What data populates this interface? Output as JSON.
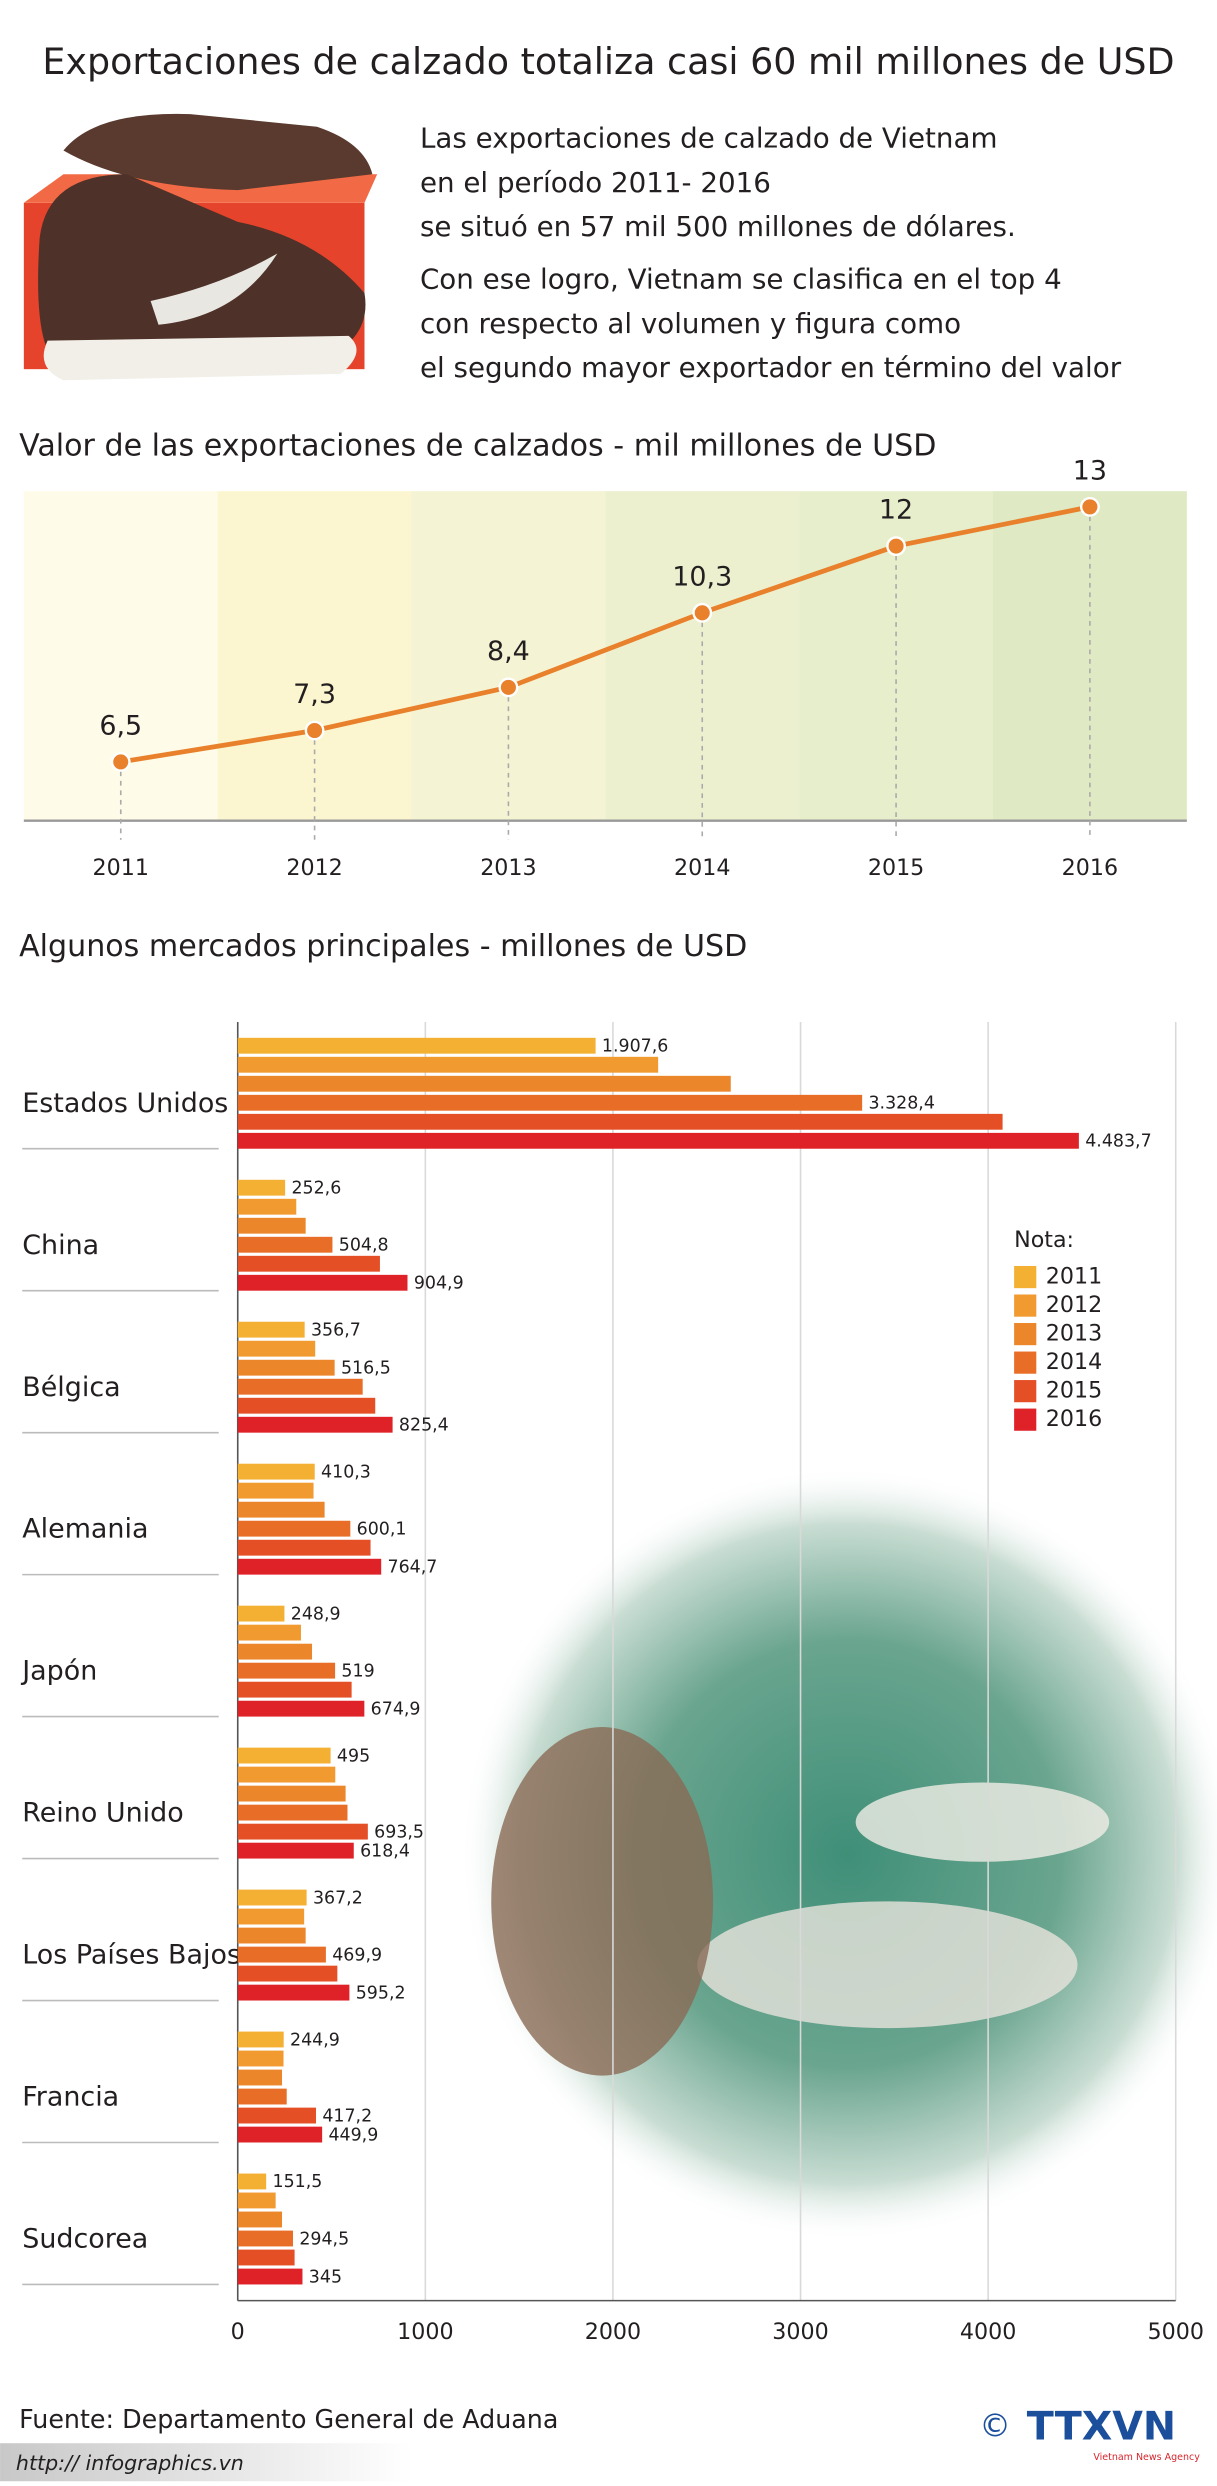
{
  "title": "Exportaciones de calzado totaliza casi 60 mil millones de USD",
  "intro": [
    "Las exportaciones de calzado de Vietnam",
    "en el período 2011- 2016",
    "se situó en 57 mil 500 millones de dólares.",
    "Con ese logro, Vietnam se clasifica en el top 4",
    "con respecto al volumen y figura como",
    "el segundo mayor exportador en término del valor"
  ],
  "chart_data": [
    {
      "type": "line",
      "title": "Valor de las exportaciones de calzados - mil millones de USD",
      "categories": [
        "2011",
        "2012",
        "2013",
        "2014",
        "2015",
        "2016"
      ],
      "values": [
        6.5,
        7.3,
        8.4,
        10.3,
        12,
        13
      ],
      "value_labels": [
        "6,5",
        "7,3",
        "8,4",
        "10,3",
        "12",
        "13"
      ],
      "color": "#e8802c",
      "ylim": [
        5,
        13.4
      ]
    },
    {
      "type": "hbar",
      "title": "Algunos mercados principales - millones de USD",
      "categories": [
        "Estados Unidos",
        "China",
        "Bélgica",
        "Alemania",
        "Japón",
        "Reino Unido",
        "Los Países Bajos",
        "Francia",
        "Sudcorea"
      ],
      "legend_title": "Nota:",
      "series": [
        {
          "name": "2011",
          "color": "#f3b033",
          "values": [
            1907.6,
            252.6,
            356.7,
            410.3,
            248.9,
            495,
            367.2,
            244.9,
            151.5
          ],
          "value_labels": [
            "1.907,6",
            "252,6",
            "356,7",
            "410,3",
            "248,9",
            "495",
            "367,2",
            "244,9",
            "151,5"
          ]
        },
        {
          "name": "2012",
          "color": "#f09a30",
          "values": [
            2241,
            312,
            413,
            404,
            337,
            520,
            354,
            244,
            202
          ],
          "value_labels": [
            null,
            null,
            null,
            null,
            null,
            null,
            null,
            null,
            null
          ]
        },
        {
          "name": "2013",
          "color": "#ec862b",
          "values": [
            2628,
            362,
            516.5,
            463,
            396,
            575,
            362,
            236,
            236
          ],
          "value_labels": [
            null,
            null,
            "516,5",
            null,
            null,
            null,
            null,
            null,
            null
          ]
        },
        {
          "name": "2014",
          "color": "#e86d27",
          "values": [
            3328.4,
            504.8,
            666,
            600.1,
            519,
            585,
            469.9,
            261,
            294.5
          ],
          "value_labels": [
            "3.328,4",
            "504,8",
            null,
            "600,1",
            "519",
            null,
            "469,9",
            null,
            "294,5"
          ]
        },
        {
          "name": "2015",
          "color": "#e44f26",
          "values": [
            4077,
            758,
            733,
            708,
            607,
            693.5,
            531,
            417.2,
            303
          ],
          "value_labels": [
            null,
            null,
            null,
            null,
            null,
            "693,5",
            null,
            "417,2",
            null
          ]
        },
        {
          "name": "2016",
          "color": "#df2228",
          "values": [
            4483.7,
            904.9,
            825.4,
            764.7,
            674.9,
            618.4,
            595.2,
            449.9,
            345
          ],
          "value_labels": [
            "4.483,7",
            "904,9",
            "825,4",
            "764,7",
            "674,9",
            "618,4",
            "595,2",
            "449,9",
            "345"
          ]
        }
      ],
      "xlim": [
        0,
        5000
      ],
      "xticks": [
        0,
        1000,
        2000,
        3000,
        4000,
        5000
      ],
      "grid": true
    }
  ],
  "footer": {
    "source": "Fuente: Departamento General de Aduana",
    "url": "http:// infographics.vn",
    "copyright": "©",
    "agency": "TTXVN",
    "agency_sub": "Vietnam News Agency"
  }
}
